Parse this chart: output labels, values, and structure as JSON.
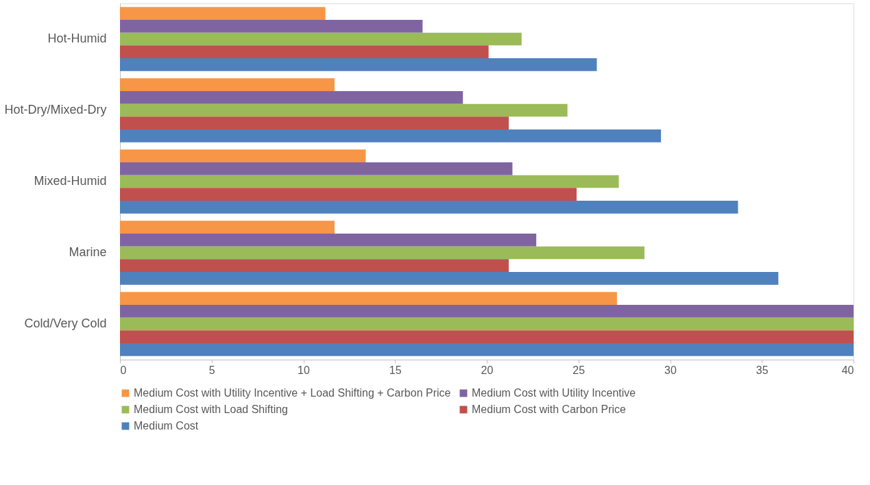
{
  "chart_data": {
    "type": "bar",
    "orientation": "horizontal",
    "categories": [
      "Hot-Humid",
      "Hot-Dry/Mixed-Dry",
      "Mixed-Humid",
      "Marine",
      "Cold/Very Cold"
    ],
    "series": [
      {
        "name": "Medium Cost with Utility Incentive + Load Shifting + Carbon Price",
        "color": "#f79646",
        "values": [
          11.2,
          11.7,
          13.4,
          11.7,
          27.1
        ]
      },
      {
        "name": "Medium Cost with Utility Incentive",
        "color": "#8064a2",
        "values": [
          16.5,
          18.7,
          21.4,
          22.7,
          40
        ]
      },
      {
        "name": "Medium Cost with Load Shifting",
        "color": "#9bbb59",
        "values": [
          21.9,
          24.4,
          27.2,
          28.6,
          40
        ]
      },
      {
        "name": "Medium Cost with Carbon Price",
        "color": "#c0504d",
        "values": [
          20.1,
          21.2,
          24.9,
          21.2,
          40
        ]
      },
      {
        "name": "Medium Cost",
        "color": "#4f81bd",
        "values": [
          26.0,
          29.5,
          33.7,
          35.9,
          40
        ]
      }
    ],
    "xlim": [
      0,
      40
    ],
    "xticks": [
      0,
      5,
      10,
      15,
      20,
      25,
      30,
      35,
      40
    ],
    "grid": false,
    "legend": "bottom"
  }
}
